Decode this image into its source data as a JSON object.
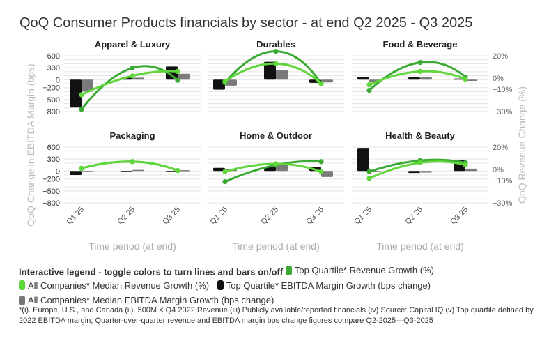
{
  "title": "QoQ Consumer Products financials by sector - at end Q2 2025 - Q3 2025",
  "legend": {
    "heading": "Interactive legend - toggle colors to turn lines and bars on/off",
    "items": [
      {
        "label": "Top Quartile* Revenue Growth (%)",
        "color": "#3aaa35"
      },
      {
        "label": "All Companies* Median Revenue Growth (%)",
        "color": "#5fd63a"
      },
      {
        "label": "Top Quartile* EBITDA Margin Growth (bps change)",
        "color": "#111111"
      },
      {
        "label": "All Companies* Median EBITDA Margin Growth (bps change)",
        "color": "#777777"
      }
    ]
  },
  "footnote": "*(i). Europe, U.S., and Canada (ii). 500M < Q4 2022 Revenue (iii) Publicly available/reported financials (iv) Source: Capital IQ (v) Top quartile defined by 2022 EBITDA margin; Quarter-over-quarter revenue and EBITDA margin bps change figures compare Q2-2025—Q3-2025",
  "chart_data": {
    "type": "bar",
    "subtype": "small-multiples combo (bars = EBITDA margin bps change, lines = revenue growth %)",
    "categories": [
      "Q1 25",
      "Q2 25",
      "Q3 25"
    ],
    "xlabel": "Time period (at end)",
    "ylabel_left": "QoQ Change in EBITDA Margin (bps)",
    "ylabel_right": "QoQ Revenue Change (%)",
    "ylim_left": [
      -800,
      600
    ],
    "yticks_left": [
      600,
      300,
      0,
      -200,
      -500,
      -800
    ],
    "ytick_labels_left": [
      "600",
      "300",
      "0",
      "−200",
      "−500",
      "−800"
    ],
    "ylim_right": [
      -30,
      20
    ],
    "yticks_right": [
      20,
      0,
      -10,
      -30
    ],
    "ytick_labels_right": [
      "20%",
      "0%",
      "−10%",
      "−30%"
    ],
    "panels": [
      {
        "title": "Apparel & Luxury",
        "series": [
          {
            "name": "Top Quartile* EBITDA Margin Growth (bps change)",
            "kind": "bar",
            "values": [
              -700,
              50,
              330
            ]
          },
          {
            "name": "All Companies* Median EBITDA Margin Growth (bps change)",
            "kind": "bar",
            "values": [
              -300,
              50,
              150
            ]
          },
          {
            "name": "Top Quartile* Revenue Growth (%)",
            "kind": "line",
            "values": [
              -28,
              9,
              -2
            ]
          },
          {
            "name": "All Companies* Median Revenue Growth (%)",
            "kind": "line",
            "values": [
              -15,
              2,
              6
            ]
          }
        ]
      },
      {
        "title": "Durables",
        "series": [
          {
            "name": "Top Quartile* EBITDA Margin Growth (bps change)",
            "kind": "bar",
            "values": [
              -250,
              450,
              -80
            ]
          },
          {
            "name": "All Companies* Median EBITDA Margin Growth (bps change)",
            "kind": "bar",
            "values": [
              -150,
              250,
              -70
            ]
          },
          {
            "name": "Top Quartile* Revenue Growth (%)",
            "kind": "line",
            "values": [
              -4,
              24,
              -5
            ]
          },
          {
            "name": "All Companies* Median Revenue Growth (%)",
            "kind": "line",
            "values": [
              -3,
              13,
              -5
            ]
          }
        ]
      },
      {
        "title": "Food & Beverage",
        "series": [
          {
            "name": "Top Quartile* EBITDA Margin Growth (bps change)",
            "kind": "bar",
            "values": [
              70,
              60,
              30
            ]
          },
          {
            "name": "All Companies* Median EBITDA Margin Growth (bps change)",
            "kind": "bar",
            "values": [
              -60,
              60,
              -30
            ]
          },
          {
            "name": "Top Quartile* Revenue Growth (%)",
            "kind": "line",
            "values": [
              -11,
              14,
              1
            ]
          },
          {
            "name": "All Companies* Median Revenue Growth (%)",
            "kind": "line",
            "values": [
              -6,
              6,
              -1
            ]
          }
        ]
      },
      {
        "title": "Packaging",
        "series": [
          {
            "name": "Top Quartile* EBITDA Margin Growth (bps change)",
            "kind": "bar",
            "values": [
              -100,
              0,
              0
            ]
          },
          {
            "name": "All Companies* Median EBITDA Margin Growth (bps change)",
            "kind": "bar",
            "values": [
              -20,
              30,
              20
            ]
          },
          {
            "name": "Top Quartile* Revenue Growth (%)",
            "kind": "line",
            "values": [
              1,
              7,
              -1
            ]
          },
          {
            "name": "All Companies* Median Revenue Growth (%)",
            "kind": "line",
            "values": [
              1,
              7,
              -1
            ]
          }
        ]
      },
      {
        "title": "Home & Outdoor",
        "series": [
          {
            "name": "Top Quartile* EBITDA Margin Growth (bps change)",
            "kind": "bar",
            "values": [
              80,
              100,
              100
            ]
          },
          {
            "name": "All Companies* Median EBITDA Margin Growth (bps change)",
            "kind": "bar",
            "values": [
              50,
              180,
              -150
            ]
          },
          {
            "name": "Top Quartile* Revenue Growth (%)",
            "kind": "line",
            "values": [
              -11,
              4,
              7
            ]
          },
          {
            "name": "All Companies* Median Revenue Growth (%)",
            "kind": "line",
            "values": [
              -2,
              5,
              -2
            ]
          }
        ]
      },
      {
        "title": "Health & Beauty",
        "series": [
          {
            "name": "Top Quartile* EBITDA Margin Growth (bps change)",
            "kind": "bar",
            "values": [
              580,
              -50,
              280
            ]
          },
          {
            "name": "All Companies* Median EBITDA Margin Growth (bps change)",
            "kind": "bar",
            "values": [
              -20,
              -40,
              60
            ]
          },
          {
            "name": "Top Quartile* Revenue Growth (%)",
            "kind": "line",
            "values": [
              -2,
              8,
              6
            ]
          },
          {
            "name": "All Companies* Median Revenue Growth (%)",
            "kind": "line",
            "values": [
              -8,
              6,
              4
            ]
          }
        ]
      }
    ]
  }
}
